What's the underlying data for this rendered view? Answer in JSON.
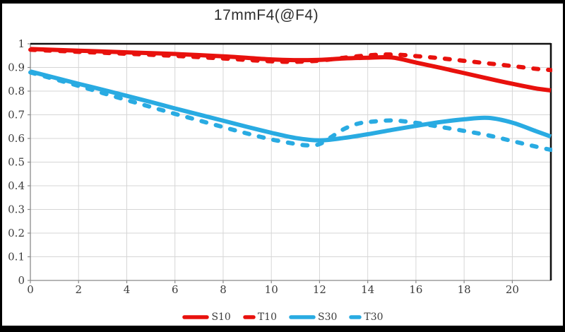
{
  "title": "17mmF4(@F4)",
  "chart_data": {
    "type": "line",
    "title": "17mmF4(@F4)",
    "xlabel": "",
    "ylabel": "",
    "xlim": [
      0,
      21.6
    ],
    "ylim": [
      0,
      1
    ],
    "x_ticks": [
      "0",
      "2",
      "4",
      "6",
      "8",
      "10",
      "12",
      "14",
      "16",
      "18",
      "20"
    ],
    "y_ticks": [
      "0",
      "0.1",
      "0.2",
      "0.3",
      "0.4",
      "0.5",
      "0.6",
      "0.7",
      "0.8",
      "0.9",
      "1"
    ],
    "grid": true,
    "legend_position": "bottom",
    "colors": {
      "red": "#e8110d",
      "cyan": "#29abe2",
      "grid": "#d6d6d6",
      "border": "#111111",
      "axis": "#8a8a8a",
      "text": "#3c3c3c",
      "title": "#2e2e2e"
    },
    "series": [
      {
        "name": "S10",
        "color": "#e8110d",
        "style": "solid",
        "x": [
          0,
          2,
          4,
          6,
          8,
          10,
          11,
          12,
          13,
          14,
          15,
          16,
          17,
          18,
          19,
          20,
          21,
          21.6
        ],
        "y": [
          0.978,
          0.971,
          0.964,
          0.957,
          0.947,
          0.934,
          0.931,
          0.932,
          0.938,
          0.941,
          0.942,
          0.921,
          0.899,
          0.876,
          0.853,
          0.831,
          0.811,
          0.803
        ]
      },
      {
        "name": "T10",
        "color": "#e8110d",
        "style": "dashed",
        "x": [
          0,
          2,
          4,
          6,
          8,
          10,
          11,
          12,
          13,
          14,
          15,
          16,
          17,
          18,
          19,
          20,
          21,
          21.6
        ],
        "y": [
          0.975,
          0.966,
          0.958,
          0.949,
          0.938,
          0.926,
          0.924,
          0.929,
          0.941,
          0.951,
          0.955,
          0.948,
          0.939,
          0.928,
          0.917,
          0.906,
          0.894,
          0.889
        ]
      },
      {
        "name": "S30",
        "color": "#29abe2",
        "style": "solid",
        "x": [
          0,
          1,
          2,
          3,
          4,
          5,
          6,
          7,
          8,
          9,
          10,
          11,
          12,
          13,
          14,
          15,
          16,
          17,
          18,
          19,
          20,
          21,
          21.6
        ],
        "y": [
          0.883,
          0.857,
          0.831,
          0.806,
          0.78,
          0.754,
          0.727,
          0.701,
          0.675,
          0.649,
          0.624,
          0.602,
          0.592,
          0.602,
          0.618,
          0.636,
          0.653,
          0.669,
          0.681,
          0.687,
          0.667,
          0.63,
          0.608
        ]
      },
      {
        "name": "T30",
        "color": "#29abe2",
        "style": "dashed",
        "x": [
          0,
          1,
          2,
          3,
          4,
          5,
          6,
          7,
          8,
          9,
          10,
          11,
          11.5,
          12,
          12.5,
          13,
          13.5,
          14,
          15,
          16,
          17,
          18,
          19,
          20,
          21,
          21.6
        ],
        "y": [
          0.879,
          0.851,
          0.822,
          0.792,
          0.762,
          0.733,
          0.704,
          0.676,
          0.648,
          0.621,
          0.596,
          0.577,
          0.571,
          0.576,
          0.607,
          0.639,
          0.66,
          0.669,
          0.676,
          0.666,
          0.649,
          0.632,
          0.613,
          0.589,
          0.565,
          0.552
        ]
      }
    ]
  }
}
